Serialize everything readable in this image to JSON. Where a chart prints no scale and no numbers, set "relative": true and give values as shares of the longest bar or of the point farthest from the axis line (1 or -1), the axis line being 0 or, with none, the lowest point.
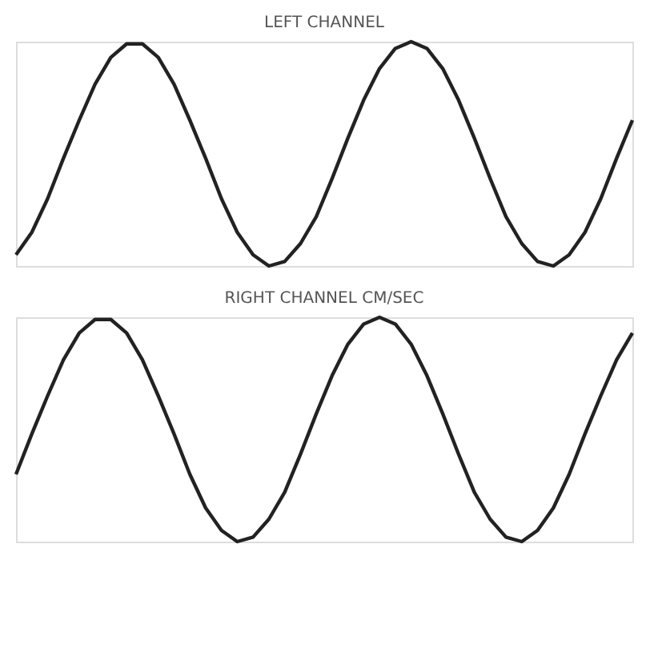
{
  "chart_data": [
    {
      "type": "line",
      "title": "LEFT CHANNEL",
      "relative": true,
      "tick_labels": false,
      "grid": false,
      "marker": "none",
      "line_style": "solid",
      "categories": [
        null,
        null,
        null,
        null,
        null,
        null,
        null,
        null,
        null,
        null,
        null,
        null,
        null,
        null,
        null,
        null,
        null,
        null,
        null,
        null,
        null,
        null,
        null,
        null,
        null,
        null,
        null,
        null,
        null,
        null,
        null,
        null,
        null,
        null,
        null,
        null,
        null,
        null,
        null,
        null
      ],
      "series": [
        {
          "color": "#222222",
          "values": [
            0.05,
            0.15,
            0.3,
            0.48,
            0.65,
            0.81,
            0.93,
            0.99,
            0.99,
            0.93,
            0.81,
            0.65,
            0.48,
            0.3,
            0.15,
            0.05,
            0.0,
            0.02,
            0.1,
            0.22,
            0.39,
            0.57,
            0.74,
            0.88,
            0.97,
            1.0,
            0.97,
            0.88,
            0.74,
            0.57,
            0.39,
            0.22,
            0.1,
            0.02,
            0.0,
            0.05,
            0.15,
            0.3,
            0.48,
            0.65
          ]
        }
      ]
    },
    {
      "type": "line",
      "title": "RIGHT CHANNEL CM/SEC",
      "relative": true,
      "tick_labels": false,
      "grid": false,
      "marker": "none",
      "line_style": "solid",
      "categories": [
        null,
        null,
        null,
        null,
        null,
        null,
        null,
        null,
        null,
        null,
        null,
        null,
        null,
        null,
        null,
        null,
        null,
        null,
        null,
        null,
        null,
        null,
        null,
        null,
        null,
        null,
        null,
        null,
        null,
        null,
        null,
        null,
        null,
        null,
        null,
        null,
        null,
        null,
        null,
        null
      ],
      "series": [
        {
          "color": "#222222",
          "values": [
            0.3,
            0.48,
            0.65,
            0.81,
            0.93,
            0.99,
            0.99,
            0.93,
            0.81,
            0.65,
            0.48,
            0.3,
            0.15,
            0.05,
            0.0,
            0.02,
            0.1,
            0.22,
            0.39,
            0.57,
            0.74,
            0.88,
            0.97,
            1.0,
            0.97,
            0.88,
            0.74,
            0.57,
            0.39,
            0.22,
            0.1,
            0.02,
            0.0,
            0.05,
            0.15,
            0.3,
            0.48,
            0.65,
            0.81,
            0.93
          ]
        }
      ]
    }
  ]
}
